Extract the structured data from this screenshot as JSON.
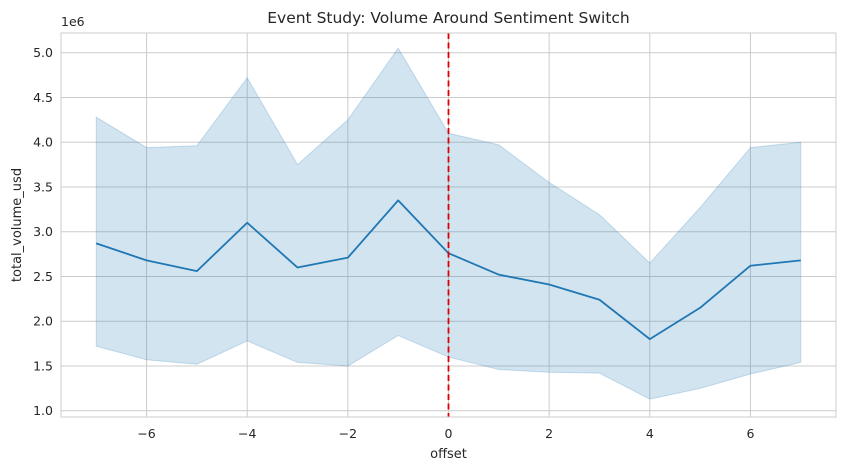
{
  "chart_data": {
    "type": "line",
    "title": "Event Study: Volume Around Sentiment Switch",
    "xlabel": "offset",
    "ylabel": "total_volume_usd",
    "y_offset_text": "1e6",
    "xlim": [
      -7.7,
      7.7
    ],
    "ylim": [
      0.93,
      5.22
    ],
    "x_ticks": [
      -6,
      -4,
      -2,
      0,
      2,
      4,
      6
    ],
    "x_tick_labels": [
      "−6",
      "−4",
      "−2",
      "0",
      "2",
      "4",
      "6"
    ],
    "y_ticks": [
      1.0,
      1.5,
      2.0,
      2.5,
      3.0,
      3.5,
      4.0,
      4.5,
      5.0
    ],
    "y_tick_labels": [
      "1.0",
      "1.5",
      "2.0",
      "2.5",
      "3.0",
      "3.5",
      "4.0",
      "4.5",
      "5.0"
    ],
    "grid": true,
    "series": [
      {
        "x": [
          -7,
          -6,
          -5,
          -4,
          -3,
          -2,
          -1,
          0,
          1,
          2,
          3,
          4,
          5,
          6,
          7
        ],
        "values": [
          2.87,
          2.68,
          2.56,
          3.1,
          2.6,
          2.71,
          3.35,
          2.76,
          2.52,
          2.41,
          2.24,
          1.8,
          2.15,
          2.62,
          2.68
        ],
        "ci_lower": [
          1.72,
          1.57,
          1.52,
          1.78,
          1.54,
          1.5,
          1.84,
          1.6,
          1.46,
          1.43,
          1.42,
          1.13,
          1.25,
          1.41,
          1.54
        ],
        "ci_upper": [
          4.28,
          3.94,
          3.96,
          4.72,
          3.75,
          4.25,
          5.05,
          4.1,
          3.97,
          3.55,
          3.19,
          2.65,
          3.27,
          3.94,
          4.0
        ],
        "color": "#1f77b4"
      }
    ],
    "vline": {
      "x": 0,
      "color": "#e00000",
      "style": "dashed"
    }
  }
}
